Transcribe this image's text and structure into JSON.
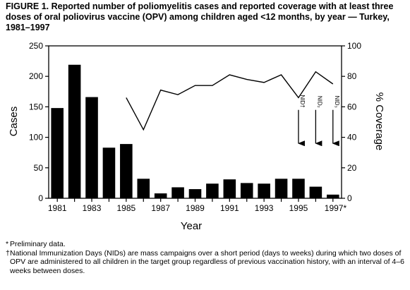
{
  "title": "FIGURE 1. Reported number of poliomyelitis cases and reported coverage with at least three doses of oral poliovirus vaccine (OPV) among children aged <12 months, by year — Turkey, 1981–1997",
  "footnotes": {
    "f1_mark": "*",
    "f1_text": "Preliminary data.",
    "f2_mark": "†",
    "f2_text": "National Immunization Days (NIDs) are mass campaigns over a short period (days to weeks) during which two doses of OPV are administered to all children in the target group regardless of previous vaccination history, with an interval of 4–6 weeks between doses."
  },
  "chart_data": {
    "type": "bar",
    "xlabel": "Year",
    "ylabel": "Cases",
    "y2label": "% Coverage",
    "ylim": [
      0,
      250
    ],
    "y2lim": [
      0,
      100
    ],
    "yticks": [
      "0",
      "50",
      "100",
      "150",
      "200",
      "250"
    ],
    "y2ticks": [
      "0",
      "20",
      "40",
      "60",
      "80",
      "100"
    ],
    "x": [
      1981,
      1982,
      1983,
      1984,
      1985,
      1986,
      1987,
      1988,
      1989,
      1990,
      1991,
      1992,
      1993,
      1994,
      1995,
      1996,
      1997
    ],
    "xtick_labels": [
      {
        "year": 1981,
        "label": "1981"
      },
      {
        "year": 1983,
        "label": "1983"
      },
      {
        "year": 1985,
        "label": "1985"
      },
      {
        "year": 1987,
        "label": "1987"
      },
      {
        "year": 1989,
        "label": "1989"
      },
      {
        "year": 1991,
        "label": "1991"
      },
      {
        "year": 1993,
        "label": "1993"
      },
      {
        "year": 1995,
        "label": "1995"
      },
      {
        "year": 1997,
        "label": "1997*"
      }
    ],
    "series": [
      {
        "type": "bar",
        "axis": "left",
        "values": [
          148,
          219,
          166,
          83,
          89,
          32,
          8,
          18,
          15,
          24,
          31,
          25,
          24,
          32,
          32,
          19,
          6
        ]
      },
      {
        "type": "line",
        "axis": "right",
        "x": [
          1985,
          1986,
          1987,
          1988,
          1989,
          1990,
          1991,
          1992,
          1993,
          1994,
          1995,
          1996,
          1997
        ],
        "values": [
          66,
          45,
          71,
          68,
          74,
          74,
          81,
          78,
          76,
          81,
          66,
          83,
          75
        ]
      }
    ],
    "annotations": [
      {
        "label": "NID†",
        "year": 1995,
        "arrow_from": 58,
        "arrow_to": 36
      },
      {
        "label": "NID₂",
        "year": 1996,
        "arrow_from": 58,
        "arrow_to": 36
      },
      {
        "label": "NID₃",
        "year": 1997,
        "arrow_from": 58,
        "arrow_to": 36
      }
    ]
  }
}
